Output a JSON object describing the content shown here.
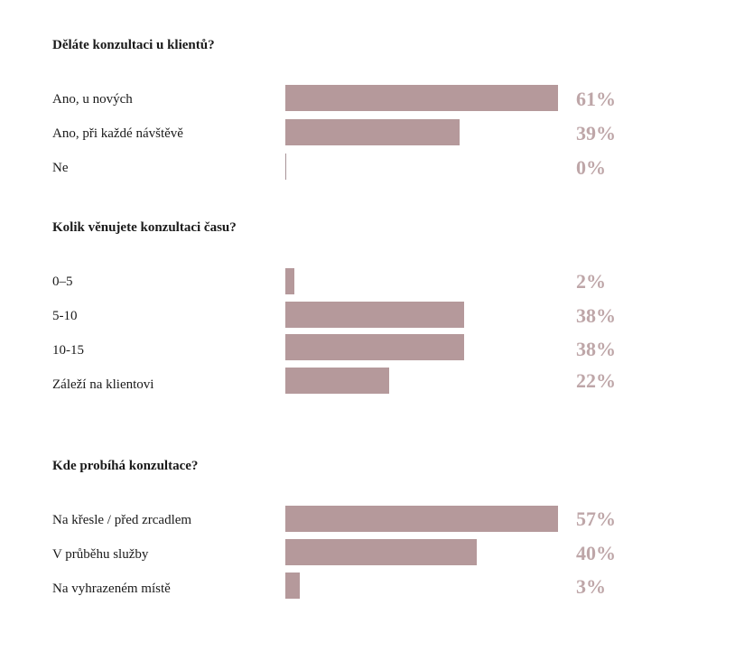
{
  "colors": {
    "bar": "#b5999b",
    "pct": "#bea6a8"
  },
  "chart_data": [
    {
      "type": "bar",
      "title": "Děláte konzultaci u klientů?",
      "categories": [
        "Ano, u nových",
        "Ano, při každé návštěvě",
        "Ne"
      ],
      "values": [
        61,
        39,
        0
      ],
      "value_labels": [
        "61%",
        "39%",
        "0%"
      ],
      "xlim": [
        0,
        61
      ],
      "orientation": "horizontal",
      "grid": false
    },
    {
      "type": "bar",
      "title": "Kolik věnujete konzultaci času?",
      "categories": [
        "0–5",
        "5-10",
        "10-15",
        "Záleží na klientovi"
      ],
      "values": [
        2,
        38,
        38,
        22
      ],
      "value_labels": [
        "2%",
        "38%",
        "38%",
        "22%"
      ],
      "xlim": [
        0,
        58
      ],
      "orientation": "horizontal",
      "grid": false
    },
    {
      "type": "bar",
      "title": "Kde probíhá konzultace?",
      "categories": [
        "Na křesle / před zrcadlem",
        "V průběhu služby",
        "Na vyhrazeném místě"
      ],
      "values": [
        57,
        40,
        3
      ],
      "value_labels": [
        "57%",
        "40%",
        "3%"
      ],
      "xlim": [
        0,
        57
      ],
      "orientation": "horizontal",
      "grid": false
    }
  ]
}
